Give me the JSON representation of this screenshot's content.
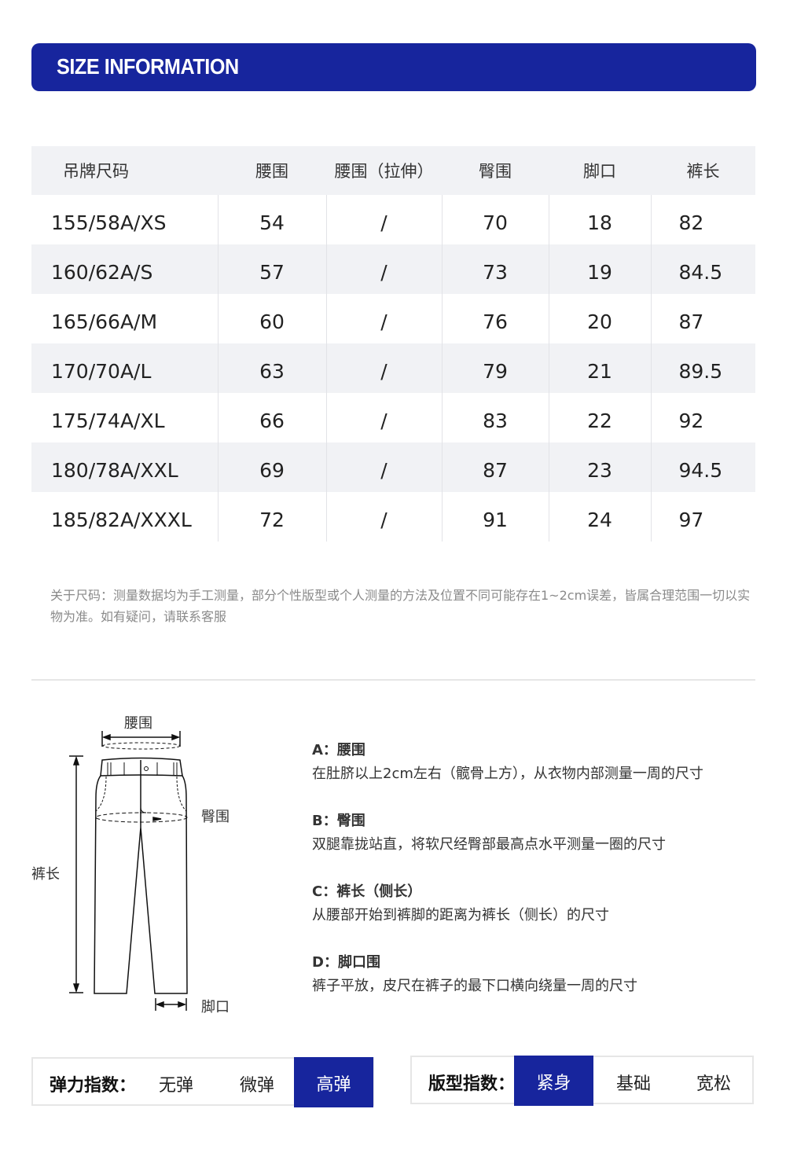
{
  "banner": {
    "title": "SIZE INFORMATION"
  },
  "table": {
    "headers": [
      "吊牌尺码",
      "腰围",
      "腰围（拉伸）",
      "臀围",
      "脚口",
      "裤长"
    ],
    "rows": [
      [
        "155/58A/XS",
        "54",
        "/",
        "70",
        "18",
        "82"
      ],
      [
        "160/62A/S",
        "57",
        "/",
        "73",
        "19",
        "84.5"
      ],
      [
        "165/66A/M",
        "60",
        "/",
        "76",
        "20",
        "87"
      ],
      [
        "170/70A/L",
        "63",
        "/",
        "79",
        "21",
        "89.5"
      ],
      [
        "175/74A/XL",
        "66",
        "/",
        "83",
        "22",
        "92"
      ],
      [
        "180/78A/XXL",
        "69",
        "/",
        "87",
        "23",
        "94.5"
      ],
      [
        "185/82A/XXXL",
        "72",
        "/",
        "91",
        "24",
        "97"
      ]
    ]
  },
  "note": "关于尺码：测量数据均为手工测量，部分个性版型或个人测量的方法及位置不同可能存在1~2cm误差，皆属合理范围一切以实物为准。如有疑问，请联系客服",
  "diagram": {
    "waist": "腰围",
    "hip": "臀围",
    "length": "裤长",
    "hem": "脚口"
  },
  "descriptions": [
    {
      "title": "A：腰围",
      "text": "在肚脐以上2cm左右（髋骨上方），从衣物内部测量一周的尺寸"
    },
    {
      "title": "B：臀围",
      "text": "双腿靠拢站直，将软尺经臀部最高点水平测量一圈的尺寸"
    },
    {
      "title": "C：裤长（侧长）",
      "text": "从腰部开始到裤脚的距离为裤长（侧长）的尺寸"
    },
    {
      "title": "D：脚口围",
      "text": "裤子平放，皮尺在裤子的最下口横向绕量一周的尺寸"
    }
  ],
  "elasticity": {
    "label": "弹力指数：",
    "options": [
      "无弹",
      "微弹",
      "高弹"
    ],
    "selected": "高弹"
  },
  "fit": {
    "label": "版型指数：",
    "options": [
      "紧身",
      "基础",
      "宽松"
    ],
    "selected": "紧身"
  },
  "colors": {
    "accent": "#17259d",
    "row_alt": "#f1f2f5"
  }
}
